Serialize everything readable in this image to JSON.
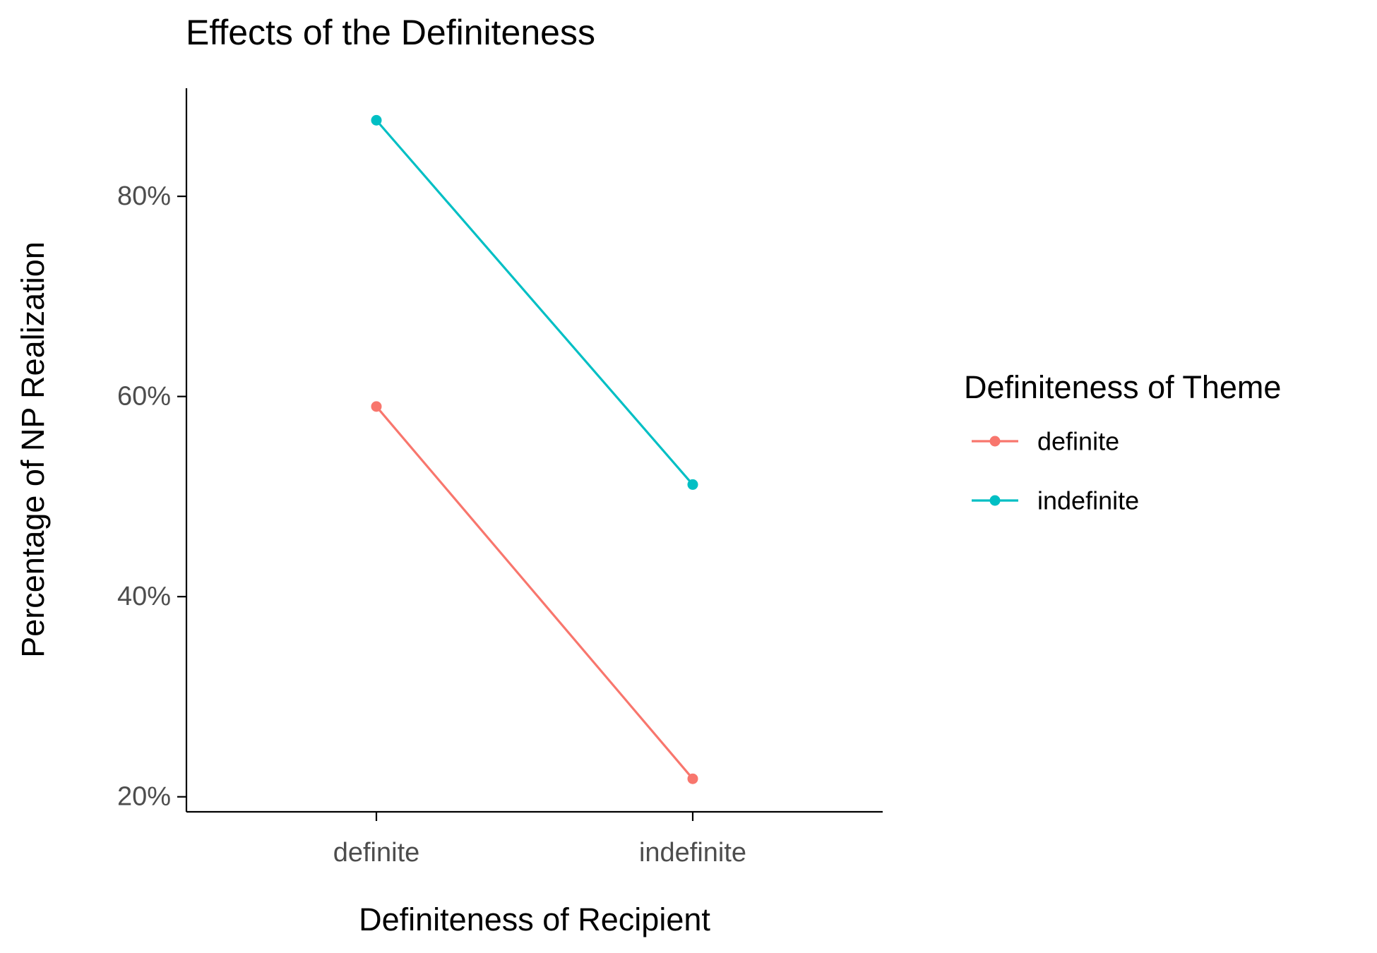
{
  "chart_data": {
    "type": "line",
    "title": "Effects of the Definiteness",
    "xlabel": "Definiteness of Recipient",
    "ylabel": "Percentage of NP Realization",
    "categories": [
      "definite",
      "indefinite"
    ],
    "y_tick_values": [
      20,
      40,
      60,
      80
    ],
    "y_tick_labels": [
      "20%",
      "40%",
      "60%",
      "80%"
    ],
    "ylim": [
      18.5,
      90.8
    ],
    "grid": false,
    "legend": {
      "title": "Definiteness of Theme",
      "position": "right"
    },
    "series": [
      {
        "name": "definite",
        "values": [
          59.0,
          21.8
        ],
        "color": "#F8766D"
      },
      {
        "name": "indefinite",
        "values": [
          87.6,
          51.2
        ],
        "color": "#00BFC4"
      }
    ]
  }
}
